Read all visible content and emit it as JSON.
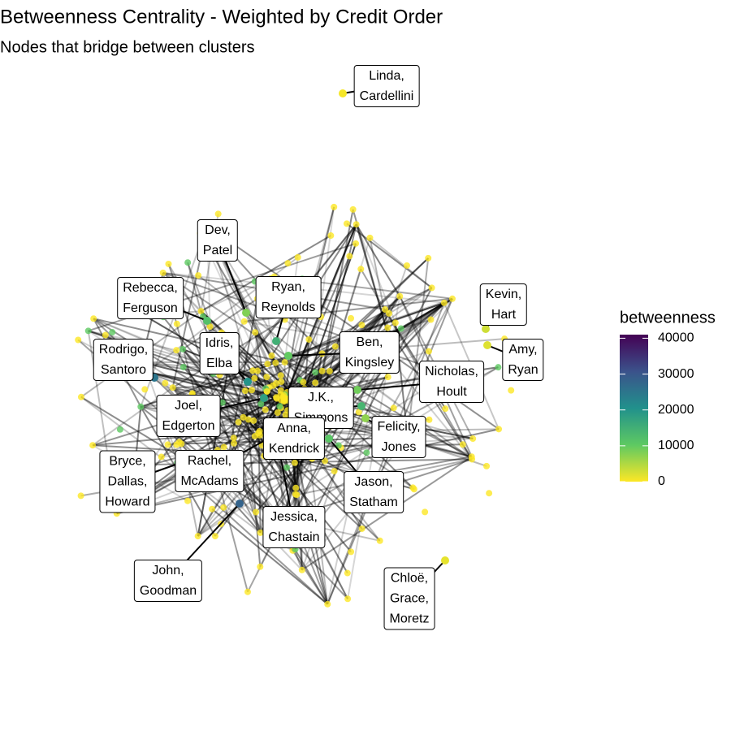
{
  "chart_data": {
    "type": "network",
    "title": "Betweenness Centrality - Weighted by Credit Order",
    "subtitle": "Nodes that bridge between clusters",
    "legend_title": "betweenness",
    "clim": [
      0,
      41000
    ],
    "cticks": [
      0,
      10000,
      20000,
      30000,
      40000
    ],
    "palette": [
      "#fde725",
      "#5ec962",
      "#21918c",
      "#3b528b",
      "#440154"
    ],
    "nodes": [
      {
        "label": "Linda,\nCardellini",
        "betweenness": 500
      },
      {
        "label": "Dev,\nPatel",
        "betweenness": 8000
      },
      {
        "label": "Ryan,\nReynolds",
        "betweenness": 15000
      },
      {
        "label": "Rebecca,\nFerguson",
        "betweenness": 12000
      },
      {
        "label": "Idris,\nElba",
        "betweenness": 20000
      },
      {
        "label": "Rodrigo,\nSantoro",
        "betweenness": 25000
      },
      {
        "label": "Ben,\nKingsley",
        "betweenness": 10000
      },
      {
        "label": "Kevin,\nHart",
        "betweenness": 3000
      },
      {
        "label": "Amy,\nRyan",
        "betweenness": 2000
      },
      {
        "label": "Nicholas,\nHoult",
        "betweenness": 9000
      },
      {
        "label": "J.K.,\nSimmons",
        "betweenness": 14000
      },
      {
        "label": "Joel,\nEdgerton",
        "betweenness": 18000
      },
      {
        "label": "Anna,\nKendrick",
        "betweenness": 30000
      },
      {
        "label": "Felicity,\nJones",
        "betweenness": 7000
      },
      {
        "label": "Rachel,\nMcAdams",
        "betweenness": 22000
      },
      {
        "label": "Bryce,\nDallas,\nHoward",
        "betweenness": 26000
      },
      {
        "label": "Jason,\nStatham",
        "betweenness": 11000
      },
      {
        "label": "Jessica,\nChastain",
        "betweenness": 16000
      },
      {
        "label": "John,\nGoodman",
        "betweenness": 28000
      },
      {
        "label": "Chloë,\nGrace,\nMoretz",
        "betweenness": 1500
      }
    ]
  }
}
